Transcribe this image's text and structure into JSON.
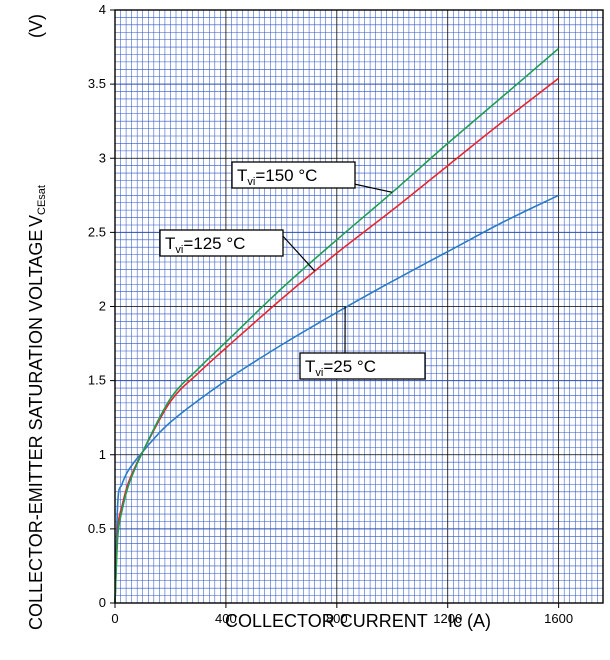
{
  "chart_data": {
    "type": "line",
    "xlabel": "COLLECTOR CURRENT",
    "xlabel_symbol": "Ic (A)",
    "ylabel": "COLLECTOR-EMITTER SATURATION VOLTAGE",
    "ylabel_symbol_main": "V",
    "ylabel_symbol_sub": "CEsat",
    "ylabel_unit": "(V)",
    "xlim": [
      0,
      1760
    ],
    "ylim": [
      0,
      4
    ],
    "xticks": [
      0,
      400,
      800,
      1200,
      1600
    ],
    "xtick_labels": [
      "0",
      "400",
      "800",
      "1200",
      "1600"
    ],
    "yticks": [
      0,
      0.5,
      1,
      1.5,
      2,
      2.5,
      3,
      3.5,
      4
    ],
    "ytick_labels": [
      "0",
      "0.5",
      "1",
      "1.5",
      "2",
      "2.5",
      "3",
      "3.5",
      "4"
    ],
    "grid": true,
    "grid_minor_color": "#2e55c8",
    "grid_major_color": "#000000",
    "series": [
      {
        "name": "Tvi=25 °C",
        "label_main": "T",
        "label_sub": "vi",
        "label_rest": "=25 °C",
        "color": "#2a7cc4",
        "x": [
          0,
          10,
          25,
          50,
          100,
          200,
          400,
          600,
          800,
          1000,
          1200,
          1400,
          1600
        ],
        "y": [
          0,
          0.68,
          0.8,
          0.9,
          1.02,
          1.22,
          1.5,
          1.74,
          1.96,
          2.17,
          2.37,
          2.57,
          2.75
        ]
      },
      {
        "name": "Tvi=125 °C",
        "label_main": "T",
        "label_sub": "vi",
        "label_rest": "=125 °C",
        "color": "#e8262b",
        "x": [
          0,
          10,
          25,
          50,
          100,
          200,
          300,
          400,
          600,
          800,
          1000,
          1200,
          1400,
          1600
        ],
        "y": [
          0,
          0.5,
          0.65,
          0.82,
          1.02,
          1.36,
          1.55,
          1.72,
          2.05,
          2.36,
          2.65,
          2.95,
          3.25,
          3.54
        ]
      },
      {
        "name": "Tvi=150 °C",
        "label_main": "T",
        "label_sub": "vi",
        "label_rest": "=150 °C",
        "color": "#1e9e52",
        "x": [
          0,
          10,
          25,
          50,
          100,
          200,
          300,
          400,
          600,
          800,
          1000,
          1200,
          1400,
          1600
        ],
        "y": [
          0,
          0.45,
          0.62,
          0.8,
          1.02,
          1.38,
          1.58,
          1.76,
          2.12,
          2.45,
          2.77,
          3.1,
          3.42,
          3.74
        ]
      }
    ],
    "annotations": [
      {
        "series": 2,
        "x": 1000,
        "y": 2.77
      },
      {
        "series": 1,
        "x": 720,
        "y": 2.24
      },
      {
        "series": 0,
        "x": 830,
        "y": 2.0
      }
    ]
  }
}
